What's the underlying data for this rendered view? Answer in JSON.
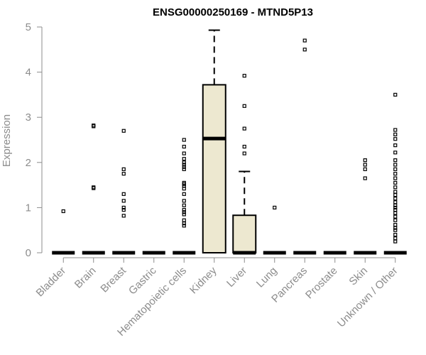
{
  "chart_data": {
    "type": "boxplot",
    "title": "ENSG00000250169 - MTND5P13",
    "xlabel": "",
    "ylabel": "Expression",
    "ylim": [
      0,
      5
    ],
    "yticks": [
      0,
      1,
      2,
      3,
      4,
      5
    ],
    "grid": false,
    "box_fill": "#ede8d0",
    "categories": [
      "Bladder",
      "Brain",
      "Breast",
      "Gastric",
      "Hematopoietic cells",
      "Kidney",
      "Liver",
      "Lung",
      "Pancreas",
      "Prostate",
      "Skin",
      "Unknown / Other"
    ],
    "groups": [
      {
        "name": "Bladder",
        "q1": 0,
        "median": 0,
        "q3": 0,
        "whisker_low": 0,
        "whisker_high": 0,
        "outliers": [
          0.92
        ]
      },
      {
        "name": "Brain",
        "q1": 0,
        "median": 0,
        "q3": 0,
        "whisker_low": 0,
        "whisker_high": 0,
        "outliers": [
          1.43,
          1.45,
          2.8,
          2.82
        ]
      },
      {
        "name": "Breast",
        "q1": 0,
        "median": 0,
        "q3": 0,
        "whisker_low": 0,
        "whisker_high": 0,
        "outliers": [
          0.82,
          0.95,
          1.0,
          1.15,
          1.3,
          1.75,
          1.85,
          2.7
        ]
      },
      {
        "name": "Gastric",
        "q1": 0,
        "median": 0,
        "q3": 0,
        "whisker_low": 0,
        "whisker_high": 0,
        "outliers": []
      },
      {
        "name": "Hematopoietic cells",
        "q1": 0,
        "median": 0,
        "q3": 0,
        "whisker_low": 0,
        "whisker_high": 0,
        "outliers": [
          0.6,
          0.65,
          0.72,
          0.85,
          0.9,
          0.95,
          1.05,
          1.15,
          1.3,
          1.42,
          1.48,
          1.52,
          1.55,
          1.85,
          1.9,
          1.95,
          2.0,
          2.08,
          2.2,
          2.35,
          2.5
        ]
      },
      {
        "name": "Kidney",
        "q1": 0,
        "median": 2.53,
        "q3": 3.72,
        "whisker_low": 0,
        "whisker_high": 4.93,
        "outliers": []
      },
      {
        "name": "Liver",
        "q1": 0,
        "median": 0,
        "q3": 0.83,
        "whisker_low": 0,
        "whisker_high": 1.8,
        "outliers": [
          2.2,
          2.35,
          2.75,
          3.25,
          3.92
        ]
      },
      {
        "name": "Lung",
        "q1": 0,
        "median": 0,
        "q3": 0,
        "whisker_low": 0,
        "whisker_high": 0,
        "outliers": [
          1.0
        ]
      },
      {
        "name": "Pancreas",
        "q1": 0,
        "median": 0,
        "q3": 0,
        "whisker_low": 0,
        "whisker_high": 0,
        "outliers": [
          4.5,
          4.7
        ]
      },
      {
        "name": "Prostate",
        "q1": 0,
        "median": 0,
        "q3": 0,
        "whisker_low": 0,
        "whisker_high": 0,
        "outliers": []
      },
      {
        "name": "Skin",
        "q1": 0,
        "median": 0,
        "q3": 0,
        "whisker_low": 0,
        "whisker_high": 0,
        "outliers": [
          1.65,
          1.85,
          1.95,
          2.05
        ]
      },
      {
        "name": "Unknown / Other",
        "q1": 0,
        "median": 0,
        "q3": 0,
        "whisker_low": 0,
        "whisker_high": 0,
        "outliers": [
          0.25,
          0.32,
          0.4,
          0.5,
          0.55,
          0.62,
          0.72,
          0.8,
          0.88,
          0.95,
          1.0,
          1.05,
          1.12,
          1.2,
          1.28,
          1.35,
          1.45,
          1.55,
          1.65,
          1.75,
          1.85,
          1.95,
          2.05,
          2.22,
          2.38,
          2.52,
          2.62,
          2.72,
          3.5
        ]
      }
    ]
  }
}
